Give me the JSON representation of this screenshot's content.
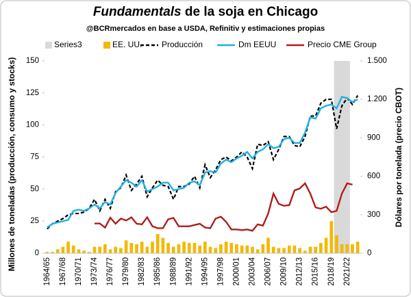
{
  "chart_data": {
    "type": "combo",
    "title_emphasis": "Fundamentals",
    "title": "de la soja en Chicago",
    "subtitle": "@BCRmercados en base a USDA, Refinitiv y estimaciones propias",
    "y_label": "Millones de toneladas (producción, consumo y stocks)",
    "y2_label": "Dólares por tonelada (precio CBOT)",
    "categories": [
      "1964/65",
      null,
      null,
      "1967/68",
      null,
      null,
      "1970/71",
      null,
      null,
      "1973/74",
      null,
      null,
      "1976/77",
      null,
      null,
      "1979/80",
      null,
      null,
      "1982/83",
      null,
      null,
      "1985/86",
      null,
      null,
      "1988/89",
      null,
      null,
      "1991/92",
      null,
      null,
      "1994/95",
      null,
      null,
      "1997/98",
      null,
      null,
      "2000/01",
      null,
      null,
      "2003/04",
      null,
      null,
      "2006/07",
      null,
      null,
      "2009/10",
      null,
      null,
      "2012/13",
      null,
      null,
      "2015/16",
      null,
      null,
      "2018/19",
      null,
      null,
      "2021/22",
      null,
      null
    ],
    "ylim": [
      0,
      150
    ],
    "yticks": [
      0,
      25,
      50,
      75,
      100,
      125,
      150
    ],
    "y2lim": [
      0,
      1500
    ],
    "y2ticks": [
      0,
      300,
      600,
      900,
      {
        "value": 1200,
        "label": "1.200"
      },
      {
        "value": 1500,
        "label": "1.500"
      }
    ],
    "grid": false,
    "legend": "top",
    "series": [
      {
        "name": "Series3",
        "kind": "band",
        "color": "#d9d9d9",
        "values": [
          null,
          null,
          null,
          null,
          null,
          null,
          null,
          null,
          null,
          null,
          null,
          null,
          null,
          null,
          null,
          null,
          null,
          null,
          null,
          null,
          null,
          null,
          null,
          null,
          null,
          null,
          null,
          null,
          null,
          null,
          null,
          null,
          null,
          null,
          null,
          null,
          null,
          null,
          null,
          null,
          null,
          null,
          null,
          null,
          null,
          null,
          null,
          null,
          null,
          null,
          null,
          null,
          null,
          null,
          null,
          150,
          150,
          150,
          null,
          null
        ]
      },
      {
        "name": "EE. UU.",
        "kind": "bar",
        "color": "#f2b800",
        "values": [
          1,
          1,
          3,
          5,
          9,
          6,
          3,
          2,
          1,
          5,
          5,
          7,
          3,
          5,
          4,
          10,
          8,
          7,
          9,
          5,
          9,
          15,
          12,
          8,
          5,
          7,
          9,
          8,
          8,
          6,
          9,
          5,
          4,
          7,
          9,
          8,
          7,
          6,
          6,
          5,
          3,
          7,
          12,
          5,
          4,
          4,
          6,
          6,
          4,
          2,
          5,
          5,
          8,
          12,
          25,
          14,
          7,
          7,
          7,
          9
        ]
      },
      {
        "name": "Producción",
        "kind": "line",
        "dash": true,
        "color": "#000000",
        "values": [
          19,
          23,
          25,
          27,
          30,
          31,
          31,
          32,
          35,
          42,
          33,
          42,
          35,
          48,
          51,
          61,
          49,
          54,
          60,
          44,
          51,
          57,
          53,
          52,
          42,
          52,
          52,
          54,
          60,
          51,
          69,
          59,
          65,
          73,
          75,
          72,
          75,
          79,
          75,
          66,
          85,
          84,
          87,
          73,
          81,
          91,
          91,
          84,
          83,
          91,
          107,
          107,
          117,
          120,
          120,
          97,
          115,
          121,
          116,
          123
        ]
      },
      {
        "name": "Dm EEUU",
        "kind": "line",
        "color": "#1fb0e6",
        "values": [
          20,
          23,
          24,
          25,
          26,
          33,
          34,
          33,
          35,
          38,
          35,
          40,
          38,
          47,
          52,
          57,
          55,
          52,
          57,
          48,
          50,
          52,
          55,
          55,
          49,
          50,
          51,
          55,
          56,
          53,
          63,
          64,
          63,
          70,
          73,
          71,
          74,
          76,
          79,
          74,
          79,
          81,
          85,
          82,
          83,
          89,
          90,
          86,
          86,
          94,
          106,
          105,
          113,
          115,
          116,
          113,
          122,
          121,
          118,
          120
        ]
      },
      {
        "name": "Precio CME Group",
        "kind": "line",
        "axis": "y2",
        "color": "#b01c1c",
        "values": [
          null,
          null,
          null,
          null,
          null,
          null,
          null,
          null,
          null,
          232,
          232,
          200,
          277,
          230,
          270,
          255,
          280,
          230,
          225,
          280,
          210,
          195,
          195,
          265,
          275,
          210,
          210,
          210,
          220,
          230,
          200,
          195,
          270,
          285,
          245,
          185,
          185,
          180,
          185,
          175,
          225,
          215,
          310,
          465,
          385,
          370,
          375,
          490,
          505,
          545,
          465,
          357,
          347,
          363,
          320,
          330,
          465,
          545,
          535,
          null
        ]
      }
    ]
  }
}
